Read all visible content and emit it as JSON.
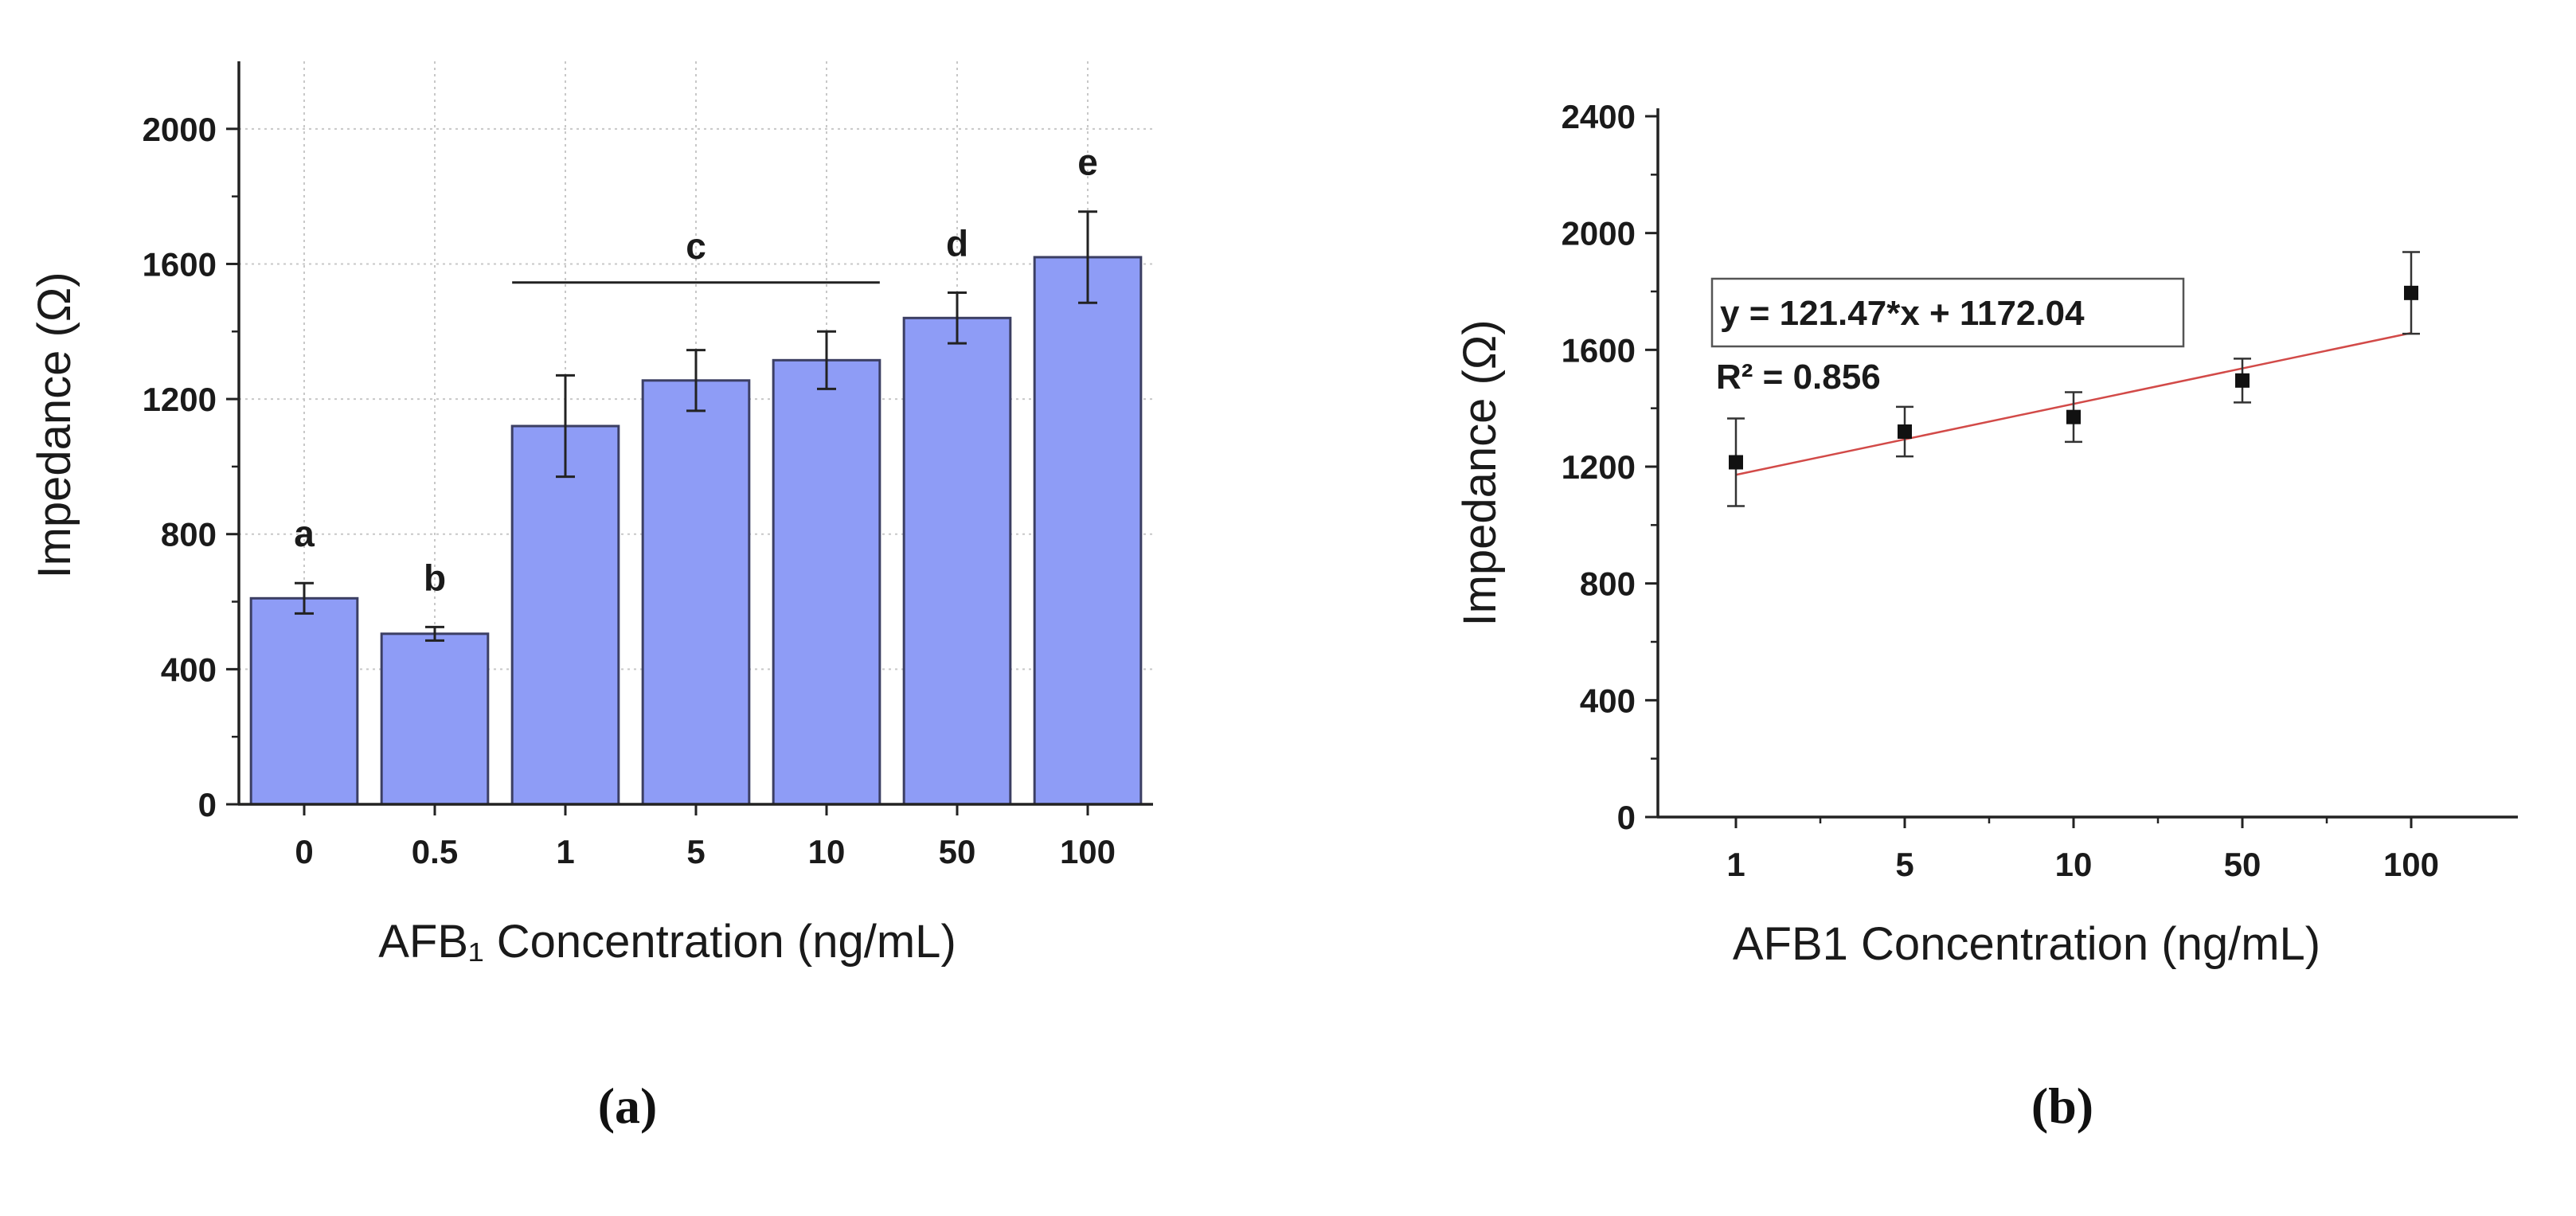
{
  "colors": {
    "bar_fill": "#8e9cf6",
    "bar_stroke": "#3c3f63",
    "axis": "#222222",
    "grid": "#c8c8c8",
    "fit_line": "#d24a48",
    "marker": "#111111",
    "text": "#1a1a1a"
  },
  "chart_data": [
    {
      "id": "a",
      "type": "bar",
      "panel_label": "(a)",
      "title": "",
      "xlabel": "AFB₁ Concentration (ng/mL)",
      "ylabel": "Impedance (Ω)",
      "categories": [
        "0",
        "0.5",
        "1",
        "5",
        "10",
        "50",
        "100"
      ],
      "values": [
        610,
        505,
        1120,
        1255,
        1315,
        1440,
        1620
      ],
      "errors": [
        45,
        20,
        150,
        90,
        85,
        75,
        135
      ],
      "ylim": [
        0,
        2200
      ],
      "yticks": [
        0,
        400,
        800,
        1200,
        1600,
        2000
      ],
      "ytick_labels": [
        "0",
        "400",
        "800",
        "1200",
        "1600",
        "2000"
      ],
      "grid": true,
      "significance_letters": [
        {
          "category_index": 0,
          "label": "a"
        },
        {
          "category_index": 1,
          "label": "b"
        },
        {
          "category_index": 5,
          "label": "d"
        },
        {
          "category_index": 6,
          "label": "e"
        }
      ],
      "group_bracket": {
        "from_index": 2,
        "to_index": 4,
        "label": "c",
        "value": 1545
      }
    },
    {
      "id": "b",
      "type": "scatter",
      "panel_label": "(b)",
      "title": "",
      "xlabel": "AFB1 Concentration (ng/mL)",
      "ylabel": "Impedance (Ω)",
      "categories": [
        "1",
        "5",
        "10",
        "50",
        "100"
      ],
      "values": [
        1215,
        1320,
        1370,
        1495,
        1795
      ],
      "errors": [
        150,
        85,
        85,
        75,
        140
      ],
      "ylim": [
        0,
        2400
      ],
      "yticks": [
        0,
        400,
        800,
        1200,
        1600,
        2000,
        2400
      ],
      "ytick_labels": [
        "0",
        "400",
        "800",
        "1200",
        "1600",
        "2000",
        "2400"
      ],
      "grid": false,
      "fit": {
        "slope": 121.47,
        "intercept": 1172.04,
        "x_start": 0,
        "x_end": 4,
        "equation": "y = 121.47*x + 1172.04",
        "r2_label": "R² = 0.856"
      }
    }
  ]
}
